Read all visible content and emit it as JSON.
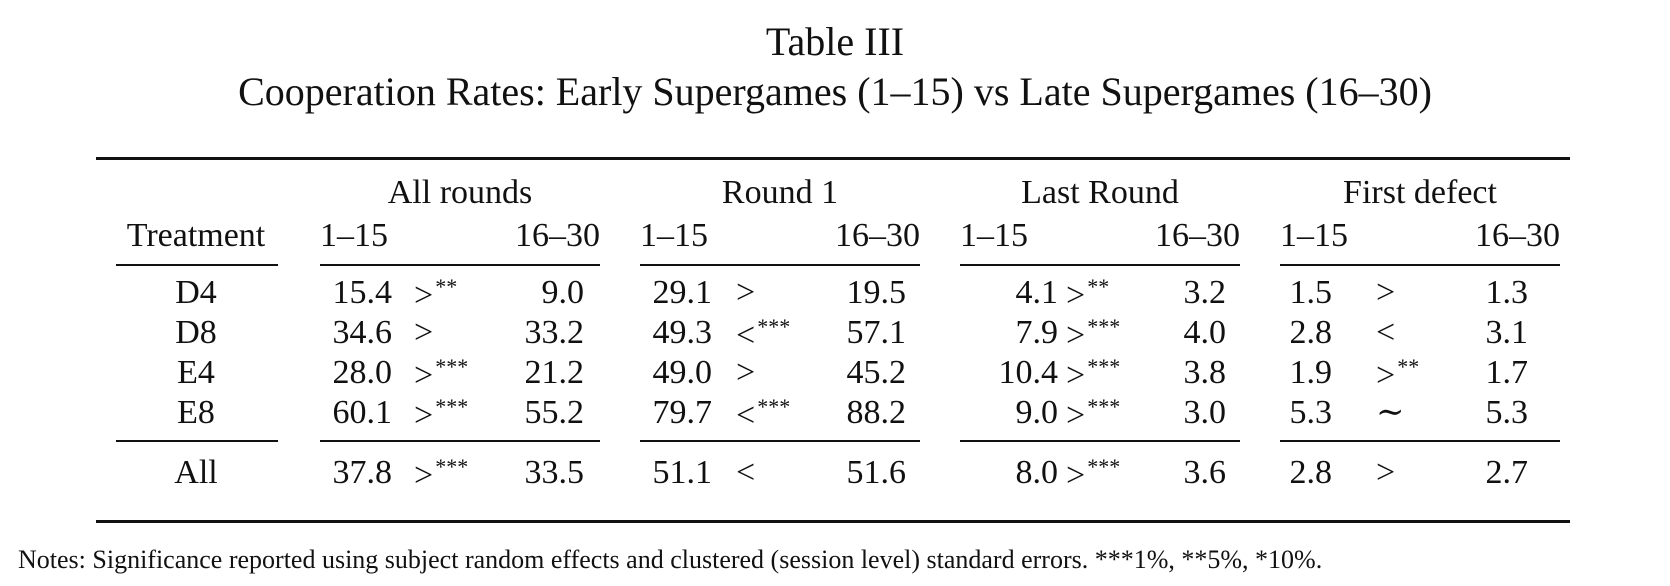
{
  "title": "Table III",
  "subtitle": "Cooperation Rates: Early Supergames (1–15) vs Late Supergames (16–30)",
  "table": {
    "row_header": "Treatment",
    "groups": [
      {
        "label": "All rounds",
        "early": "1–15",
        "late": "16–30"
      },
      {
        "label": "Round 1",
        "early": "1–15",
        "late": "16–30"
      },
      {
        "label": "Last Round",
        "early": "1–15",
        "late": "16–30"
      },
      {
        "label": "First defect",
        "early": "1–15",
        "late": "16–30"
      }
    ],
    "rows": [
      {
        "treatment": "D4",
        "cells": [
          {
            "early": "15.4",
            "cmp": ">",
            "sig": "**",
            "late": "9.0"
          },
          {
            "early": "29.1",
            "cmp": ">",
            "sig": "",
            "late": "19.5"
          },
          {
            "early": "4.1",
            "cmp": ">",
            "sig": "**",
            "late": "3.2"
          },
          {
            "early": "1.5",
            "cmp": ">",
            "sig": "",
            "late": "1.3"
          }
        ]
      },
      {
        "treatment": "D8",
        "cells": [
          {
            "early": "34.6",
            "cmp": ">",
            "sig": "",
            "late": "33.2"
          },
          {
            "early": "49.3",
            "cmp": "<",
            "sig": "***",
            "late": "57.1"
          },
          {
            "early": "7.9",
            "cmp": ">",
            "sig": "***",
            "late": "4.0"
          },
          {
            "early": "2.8",
            "cmp": "<",
            "sig": "",
            "late": "3.1"
          }
        ]
      },
      {
        "treatment": "E4",
        "cells": [
          {
            "early": "28.0",
            "cmp": ">",
            "sig": "***",
            "late": "21.2"
          },
          {
            "early": "49.0",
            "cmp": ">",
            "sig": "",
            "late": "45.2"
          },
          {
            "early": "10.4",
            "cmp": ">",
            "sig": "***",
            "late": "3.8"
          },
          {
            "early": "1.9",
            "cmp": ">",
            "sig": "**",
            "late": "1.7"
          }
        ]
      },
      {
        "treatment": "E8",
        "cells": [
          {
            "early": "60.1",
            "cmp": ">",
            "sig": "***",
            "late": "55.2"
          },
          {
            "early": "79.7",
            "cmp": "<",
            "sig": "***",
            "late": "88.2"
          },
          {
            "early": "9.0",
            "cmp": ">",
            "sig": "***",
            "late": "3.0"
          },
          {
            "early": "5.3",
            "cmp": "∼",
            "sig": "",
            "late": "5.3"
          }
        ]
      }
    ],
    "total": {
      "treatment": "All",
      "cells": [
        {
          "early": "37.8",
          "cmp": ">",
          "sig": "***",
          "late": "33.5"
        },
        {
          "early": "51.1",
          "cmp": "<",
          "sig": "",
          "late": "51.6"
        },
        {
          "early": "8.0",
          "cmp": ">",
          "sig": "***",
          "late": "3.6"
        },
        {
          "early": "2.8",
          "cmp": ">",
          "sig": "",
          "late": "2.7"
        }
      ]
    }
  },
  "notes": "Notes: Significance reported using subject random effects and clustered (session level) standard errors. ***1%, **5%, *10%."
}
